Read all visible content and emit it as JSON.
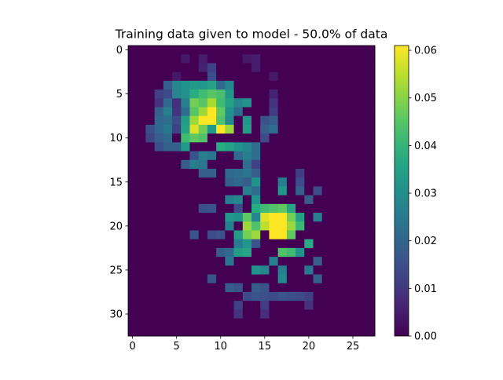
{
  "chart_data": {
    "type": "heatmap",
    "title": "Training data given to model - 50.0% of data",
    "xlabel": "",
    "ylabel": "",
    "rows": 33,
    "cols": 28,
    "x_ticks": [
      0,
      5,
      10,
      15,
      20,
      25
    ],
    "y_ticks": [
      0,
      5,
      10,
      15,
      20,
      25,
      30
    ],
    "colorbar": {
      "colormap": "viridis",
      "range": [
        0.0,
        0.061
      ],
      "ticks": [
        0.0,
        0.01,
        0.02,
        0.03,
        0.04,
        0.05,
        0.06
      ],
      "tick_labels": [
        "0.00",
        "0.01",
        "0.02",
        "0.03",
        "0.04",
        "0.05",
        "0.06"
      ]
    },
    "background_value": 0.0,
    "approx_values": [
      {
        "row": 1,
        "col": 6,
        "value": 0.004
      },
      {
        "row": 1,
        "col": 8,
        "value": 0.005
      },
      {
        "row": 1,
        "col": 13,
        "value": 0.004
      },
      {
        "row": 1,
        "col": 14,
        "value": 0.005
      },
      {
        "row": 2,
        "col": 8,
        "value": 0.006
      },
      {
        "row": 2,
        "col": 9,
        "value": 0.012
      },
      {
        "row": 2,
        "col": 14,
        "value": 0.005
      },
      {
        "row": 3,
        "col": 5,
        "value": 0.004
      },
      {
        "row": 3,
        "col": 9,
        "value": 0.014
      },
      {
        "row": 3,
        "col": 16,
        "value": 0.004
      },
      {
        "row": 4,
        "col": 4,
        "value": 0.018
      },
      {
        "row": 4,
        "col": 5,
        "value": 0.028
      },
      {
        "row": 4,
        "col": 6,
        "value": 0.031
      },
      {
        "row": 4,
        "col": 7,
        "value": 0.033
      },
      {
        "row": 4,
        "col": 8,
        "value": 0.032
      },
      {
        "row": 4,
        "col": 9,
        "value": 0.035
      },
      {
        "row": 4,
        "col": 10,
        "value": 0.021
      },
      {
        "row": 4,
        "col": 11,
        "value": 0.028
      },
      {
        "row": 5,
        "col": 3,
        "value": 0.012
      },
      {
        "row": 5,
        "col": 4,
        "value": 0.014
      },
      {
        "row": 5,
        "col": 5,
        "value": 0.028
      },
      {
        "row": 5,
        "col": 6,
        "value": 0.031
      },
      {
        "row": 5,
        "col": 7,
        "value": 0.038
      },
      {
        "row": 5,
        "col": 8,
        "value": 0.042
      },
      {
        "row": 5,
        "col": 9,
        "value": 0.045
      },
      {
        "row": 5,
        "col": 10,
        "value": 0.043
      },
      {
        "row": 5,
        "col": 11,
        "value": 0.032
      },
      {
        "row": 5,
        "col": 16,
        "value": 0.006
      },
      {
        "row": 6,
        "col": 3,
        "value": 0.009
      },
      {
        "row": 6,
        "col": 4,
        "value": 0.021
      },
      {
        "row": 6,
        "col": 5,
        "value": 0.008
      },
      {
        "row": 6,
        "col": 6,
        "value": 0.026
      },
      {
        "row": 6,
        "col": 7,
        "value": 0.048
      },
      {
        "row": 6,
        "col": 8,
        "value": 0.045
      },
      {
        "row": 6,
        "col": 9,
        "value": 0.053
      },
      {
        "row": 6,
        "col": 10,
        "value": 0.042
      },
      {
        "row": 6,
        "col": 11,
        "value": 0.035
      },
      {
        "row": 6,
        "col": 12,
        "value": 0.028
      },
      {
        "row": 6,
        "col": 13,
        "value": 0.031
      },
      {
        "row": 6,
        "col": 16,
        "value": 0.009
      },
      {
        "row": 7,
        "col": 3,
        "value": 0.019
      },
      {
        "row": 7,
        "col": 4,
        "value": 0.026
      },
      {
        "row": 7,
        "col": 5,
        "value": 0.009
      },
      {
        "row": 7,
        "col": 6,
        "value": 0.022
      },
      {
        "row": 7,
        "col": 7,
        "value": 0.045
      },
      {
        "row": 7,
        "col": 8,
        "value": 0.052
      },
      {
        "row": 7,
        "col": 9,
        "value": 0.061
      },
      {
        "row": 7,
        "col": 10,
        "value": 0.046
      },
      {
        "row": 7,
        "col": 11,
        "value": 0.031
      },
      {
        "row": 7,
        "col": 12,
        "value": 0.022
      },
      {
        "row": 7,
        "col": 16,
        "value": 0.011
      },
      {
        "row": 8,
        "col": 3,
        "value": 0.021
      },
      {
        "row": 8,
        "col": 4,
        "value": 0.022
      },
      {
        "row": 8,
        "col": 5,
        "value": 0.014
      },
      {
        "row": 8,
        "col": 6,
        "value": 0.034
      },
      {
        "row": 8,
        "col": 7,
        "value": 0.052
      },
      {
        "row": 8,
        "col": 8,
        "value": 0.061
      },
      {
        "row": 8,
        "col": 9,
        "value": 0.061
      },
      {
        "row": 8,
        "col": 10,
        "value": 0.044
      },
      {
        "row": 8,
        "col": 11,
        "value": 0.029
      },
      {
        "row": 8,
        "col": 13,
        "value": 0.032
      },
      {
        "row": 8,
        "col": 15,
        "value": 0.016
      },
      {
        "row": 8,
        "col": 16,
        "value": 0.018
      },
      {
        "row": 9,
        "col": 2,
        "value": 0.015
      },
      {
        "row": 9,
        "col": 3,
        "value": 0.021
      },
      {
        "row": 9,
        "col": 4,
        "value": 0.024
      },
      {
        "row": 9,
        "col": 5,
        "value": 0.012
      },
      {
        "row": 9,
        "col": 6,
        "value": 0.035
      },
      {
        "row": 9,
        "col": 7,
        "value": 0.058
      },
      {
        "row": 9,
        "col": 8,
        "value": 0.048
      },
      {
        "row": 9,
        "col": 9,
        "value": 0.033
      },
      {
        "row": 9,
        "col": 10,
        "value": 0.061
      },
      {
        "row": 9,
        "col": 11,
        "value": 0.052
      },
      {
        "row": 9,
        "col": 13,
        "value": 0.034
      },
      {
        "row": 9,
        "col": 15,
        "value": 0.018
      },
      {
        "row": 9,
        "col": 16,
        "value": 0.022
      },
      {
        "row": 10,
        "col": 2,
        "value": 0.013
      },
      {
        "row": 10,
        "col": 3,
        "value": 0.018
      },
      {
        "row": 10,
        "col": 4,
        "value": 0.021
      },
      {
        "row": 10,
        "col": 6,
        "value": 0.042
      },
      {
        "row": 10,
        "col": 7,
        "value": 0.046
      },
      {
        "row": 10,
        "col": 8,
        "value": 0.044
      },
      {
        "row": 10,
        "col": 15,
        "value": 0.014
      },
      {
        "row": 11,
        "col": 3,
        "value": 0.015
      },
      {
        "row": 11,
        "col": 4,
        "value": 0.019
      },
      {
        "row": 11,
        "col": 5,
        "value": 0.019
      },
      {
        "row": 11,
        "col": 6,
        "value": 0.033
      },
      {
        "row": 11,
        "col": 10,
        "value": 0.038
      },
      {
        "row": 11,
        "col": 11,
        "value": 0.035
      },
      {
        "row": 11,
        "col": 12,
        "value": 0.031
      },
      {
        "row": 11,
        "col": 13,
        "value": 0.028
      },
      {
        "row": 11,
        "col": 14,
        "value": 0.022
      },
      {
        "row": 12,
        "col": 7,
        "value": 0.016
      },
      {
        "row": 12,
        "col": 8,
        "value": 0.026
      },
      {
        "row": 12,
        "col": 9,
        "value": 0.024
      },
      {
        "row": 12,
        "col": 12,
        "value": 0.021
      },
      {
        "row": 12,
        "col": 13,
        "value": 0.026
      },
      {
        "row": 12,
        "col": 14,
        "value": 0.022
      },
      {
        "row": 13,
        "col": 6,
        "value": 0.018
      },
      {
        "row": 13,
        "col": 7,
        "value": 0.026
      },
      {
        "row": 13,
        "col": 8,
        "value": 0.024
      },
      {
        "row": 13,
        "col": 13,
        "value": 0.022
      },
      {
        "row": 13,
        "col": 14,
        "value": 0.012
      },
      {
        "row": 14,
        "col": 8,
        "value": 0.018
      },
      {
        "row": 14,
        "col": 9,
        "value": 0.019
      },
      {
        "row": 14,
        "col": 11,
        "value": 0.021
      },
      {
        "row": 14,
        "col": 12,
        "value": 0.022
      },
      {
        "row": 14,
        "col": 13,
        "value": 0.024
      },
      {
        "row": 14,
        "col": 14,
        "value": 0.018
      },
      {
        "row": 14,
        "col": 19,
        "value": 0.011
      },
      {
        "row": 15,
        "col": 11,
        "value": 0.019
      },
      {
        "row": 15,
        "col": 12,
        "value": 0.021
      },
      {
        "row": 15,
        "col": 13,
        "value": 0.018
      },
      {
        "row": 15,
        "col": 14,
        "value": 0.031
      },
      {
        "row": 15,
        "col": 17,
        "value": 0.026
      },
      {
        "row": 15,
        "col": 19,
        "value": 0.014
      },
      {
        "row": 16,
        "col": 13,
        "value": 0.026
      },
      {
        "row": 16,
        "col": 14,
        "value": 0.022
      },
      {
        "row": 16,
        "col": 17,
        "value": 0.032
      },
      {
        "row": 16,
        "col": 19,
        "value": 0.018
      },
      {
        "row": 16,
        "col": 21,
        "value": 0.014
      },
      {
        "row": 17,
        "col": 11,
        "value": 0.026
      },
      {
        "row": 17,
        "col": 12,
        "value": 0.028
      },
      {
        "row": 17,
        "col": 14,
        "value": 0.031
      },
      {
        "row": 17,
        "col": 20,
        "value": 0.018
      },
      {
        "row": 18,
        "col": 8,
        "value": 0.015
      },
      {
        "row": 18,
        "col": 9,
        "value": 0.016
      },
      {
        "row": 18,
        "col": 12,
        "value": 0.014
      },
      {
        "row": 18,
        "col": 14,
        "value": 0.038
      },
      {
        "row": 18,
        "col": 15,
        "value": 0.042
      },
      {
        "row": 18,
        "col": 16,
        "value": 0.044
      },
      {
        "row": 18,
        "col": 17,
        "value": 0.046
      },
      {
        "row": 18,
        "col": 18,
        "value": 0.036
      },
      {
        "row": 19,
        "col": 11,
        "value": 0.032
      },
      {
        "row": 19,
        "col": 12,
        "value": 0.031
      },
      {
        "row": 19,
        "col": 13,
        "value": 0.046
      },
      {
        "row": 19,
        "col": 14,
        "value": 0.028
      },
      {
        "row": 19,
        "col": 15,
        "value": 0.058
      },
      {
        "row": 19,
        "col": 16,
        "value": 0.061
      },
      {
        "row": 19,
        "col": 17,
        "value": 0.061
      },
      {
        "row": 19,
        "col": 18,
        "value": 0.048
      },
      {
        "row": 19,
        "col": 19,
        "value": 0.035
      },
      {
        "row": 19,
        "col": 21,
        "value": 0.026
      },
      {
        "row": 20,
        "col": 11,
        "value": 0.026
      },
      {
        "row": 20,
        "col": 13,
        "value": 0.052
      },
      {
        "row": 20,
        "col": 14,
        "value": 0.044
      },
      {
        "row": 20,
        "col": 15,
        "value": 0.055
      },
      {
        "row": 20,
        "col": 16,
        "value": 0.061
      },
      {
        "row": 20,
        "col": 17,
        "value": 0.061
      },
      {
        "row": 20,
        "col": 18,
        "value": 0.052
      },
      {
        "row": 20,
        "col": 19,
        "value": 0.041
      },
      {
        "row": 21,
        "col": 7,
        "value": 0.016
      },
      {
        "row": 21,
        "col": 9,
        "value": 0.014
      },
      {
        "row": 21,
        "col": 10,
        "value": 0.016
      },
      {
        "row": 21,
        "col": 12,
        "value": 0.034
      },
      {
        "row": 21,
        "col": 13,
        "value": 0.048
      },
      {
        "row": 21,
        "col": 14,
        "value": 0.052
      },
      {
        "row": 21,
        "col": 16,
        "value": 0.061
      },
      {
        "row": 21,
        "col": 17,
        "value": 0.061
      },
      {
        "row": 21,
        "col": 18,
        "value": 0.046
      },
      {
        "row": 22,
        "col": 12,
        "value": 0.026
      },
      {
        "row": 22,
        "col": 13,
        "value": 0.032
      },
      {
        "row": 22,
        "col": 14,
        "value": 0.016
      },
      {
        "row": 22,
        "col": 20,
        "value": 0.038
      },
      {
        "row": 23,
        "col": 10,
        "value": 0.018
      },
      {
        "row": 23,
        "col": 11,
        "value": 0.021
      },
      {
        "row": 23,
        "col": 12,
        "value": 0.034
      },
      {
        "row": 23,
        "col": 13,
        "value": 0.036
      },
      {
        "row": 23,
        "col": 17,
        "value": 0.044
      },
      {
        "row": 23,
        "col": 18,
        "value": 0.042
      },
      {
        "row": 23,
        "col": 19,
        "value": 0.031
      },
      {
        "row": 24,
        "col": 11,
        "value": 0.024
      },
      {
        "row": 24,
        "col": 16,
        "value": 0.026
      },
      {
        "row": 24,
        "col": 21,
        "value": 0.018
      },
      {
        "row": 25,
        "col": 14,
        "value": 0.031
      },
      {
        "row": 25,
        "col": 15,
        "value": 0.028
      },
      {
        "row": 25,
        "col": 17,
        "value": 0.026
      },
      {
        "row": 25,
        "col": 20,
        "value": 0.024
      },
      {
        "row": 26,
        "col": 9,
        "value": 0.016
      },
      {
        "row": 26,
        "col": 17,
        "value": 0.028
      },
      {
        "row": 26,
        "col": 21,
        "value": 0.019
      },
      {
        "row": 27,
        "col": 11,
        "value": 0.018
      },
      {
        "row": 27,
        "col": 12,
        "value": 0.016
      },
      {
        "row": 27,
        "col": 14,
        "value": 0.018
      },
      {
        "row": 27,
        "col": 15,
        "value": 0.016
      },
      {
        "row": 28,
        "col": 13,
        "value": 0.014
      },
      {
        "row": 28,
        "col": 14,
        "value": 0.016
      },
      {
        "row": 28,
        "col": 15,
        "value": 0.015
      },
      {
        "row": 28,
        "col": 16,
        "value": 0.014
      },
      {
        "row": 28,
        "col": 17,
        "value": 0.016
      },
      {
        "row": 28,
        "col": 18,
        "value": 0.015
      },
      {
        "row": 28,
        "col": 19,
        "value": 0.014
      },
      {
        "row": 28,
        "col": 20,
        "value": 0.012
      },
      {
        "row": 29,
        "col": 12,
        "value": 0.012
      },
      {
        "row": 29,
        "col": 15,
        "value": 0.011
      },
      {
        "row": 29,
        "col": 20,
        "value": 0.009
      },
      {
        "row": 30,
        "col": 12,
        "value": 0.009
      },
      {
        "row": 30,
        "col": 15,
        "value": 0.008
      }
    ]
  }
}
